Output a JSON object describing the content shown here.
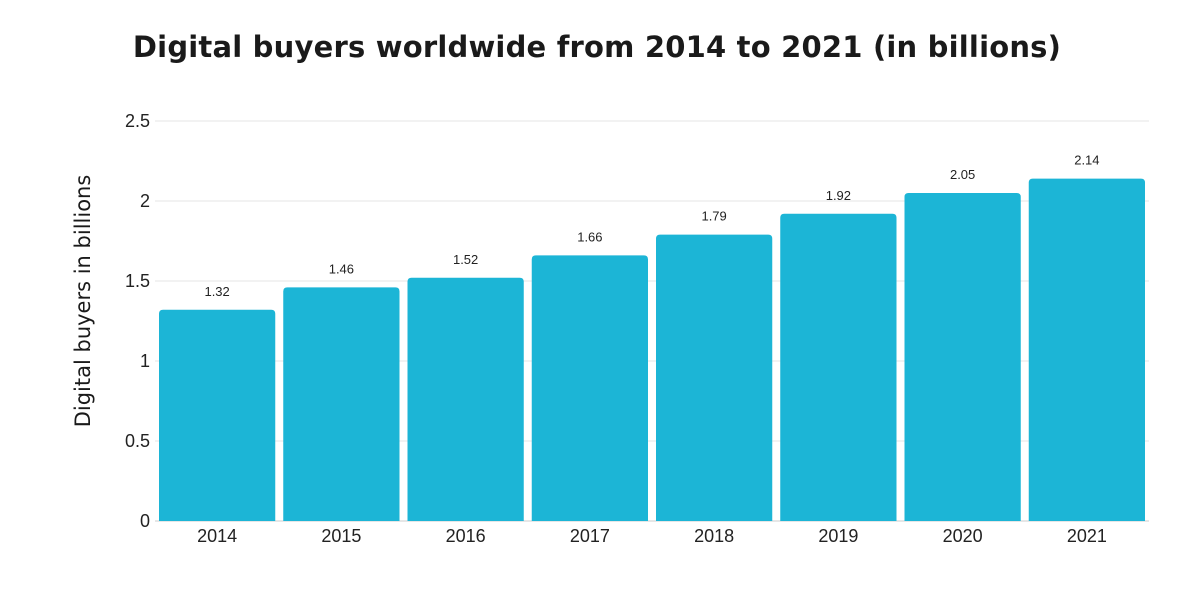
{
  "chart_data": {
    "type": "bar",
    "title": "Digital buyers worldwide from 2014 to 2021 (in billions)",
    "xlabel": "",
    "ylabel": "Digital buyers in billions",
    "categories": [
      "2014",
      "2015",
      "2016",
      "2017",
      "2018",
      "2019",
      "2020",
      "2021"
    ],
    "values": [
      1.32,
      1.46,
      1.52,
      1.66,
      1.79,
      1.92,
      2.05,
      2.14
    ],
    "data_labels": [
      "1.32",
      "1.46",
      "1.52",
      "1.66",
      "1.79",
      "1.92",
      "2.05",
      "2.14"
    ],
    "ylim": [
      0,
      2.5
    ],
    "yticks": [
      0,
      0.5,
      1,
      1.5,
      2,
      2.5
    ],
    "ytick_labels": [
      "0",
      "0.5",
      "1",
      "1.5",
      "2",
      "2.5"
    ],
    "grid": true,
    "legend": "none",
    "bar_color": "#1cb5d6",
    "grid_color": "#e6e6e6"
  }
}
